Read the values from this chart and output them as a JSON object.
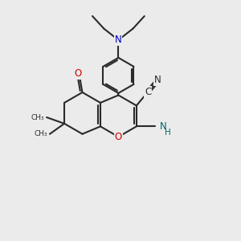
{
  "bg_color": "#ebebeb",
  "bond_color": "#2a2a2a",
  "bond_width": 1.5,
  "atom_colors": {
    "N_dark": "#0000bb",
    "N_teal": "#006666",
    "O": "#cc0000",
    "C": "#2a2a2a"
  },
  "xlim": [
    0,
    10
  ],
  "ylim": [
    0,
    10
  ],
  "font_size_atom": 8.5,
  "font_size_label": 7.5
}
